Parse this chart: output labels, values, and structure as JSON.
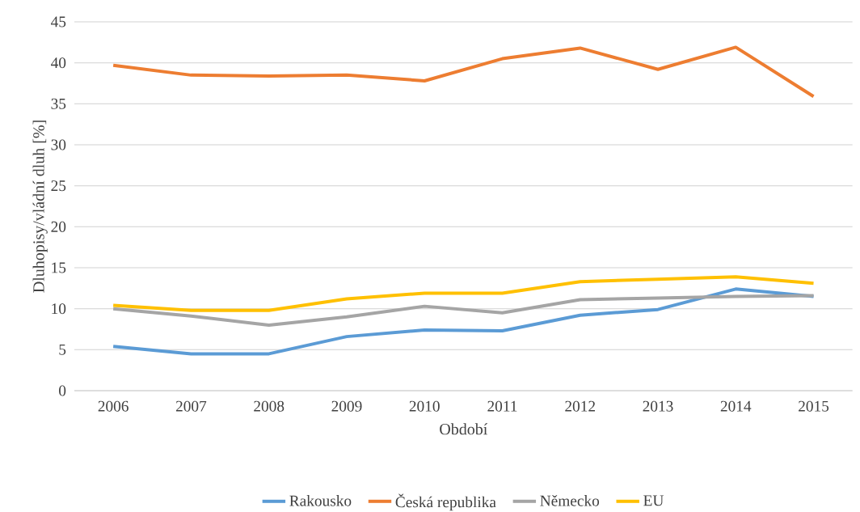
{
  "chart_data": {
    "type": "line",
    "xlabel": "Období",
    "ylabel": "Dluhopisy/vládní dluh [%]",
    "categories": [
      "2006",
      "2007",
      "2008",
      "2009",
      "2010",
      "2011",
      "2012",
      "2013",
      "2014",
      "2015"
    ],
    "series": [
      {
        "name": "Rakousko",
        "color": "#5b9bd5",
        "values": [
          5.4,
          4.5,
          4.5,
          6.6,
          7.4,
          7.3,
          9.2,
          9.9,
          12.4,
          11.5
        ]
      },
      {
        "name": "Česká republika",
        "color": "#ed7d31",
        "values": [
          39.7,
          38.5,
          38.4,
          38.5,
          37.8,
          40.5,
          41.8,
          39.2,
          41.9,
          35.9
        ]
      },
      {
        "name": "Německo",
        "color": "#a5a5a5",
        "values": [
          10.0,
          9.1,
          8.0,
          9.0,
          10.3,
          9.5,
          11.1,
          11.3,
          11.5,
          11.6
        ]
      },
      {
        "name": "EU",
        "color": "#ffc000",
        "values": [
          10.4,
          9.8,
          9.8,
          11.2,
          11.9,
          11.9,
          13.3,
          13.6,
          13.9,
          13.1
        ]
      }
    ],
    "ylim": [
      0,
      45
    ],
    "yticks": [
      0,
      5,
      10,
      15,
      20,
      25,
      30,
      35,
      40,
      45
    ],
    "grid": "y",
    "legend": "bottom",
    "marker": "none",
    "line_style": "solid"
  }
}
